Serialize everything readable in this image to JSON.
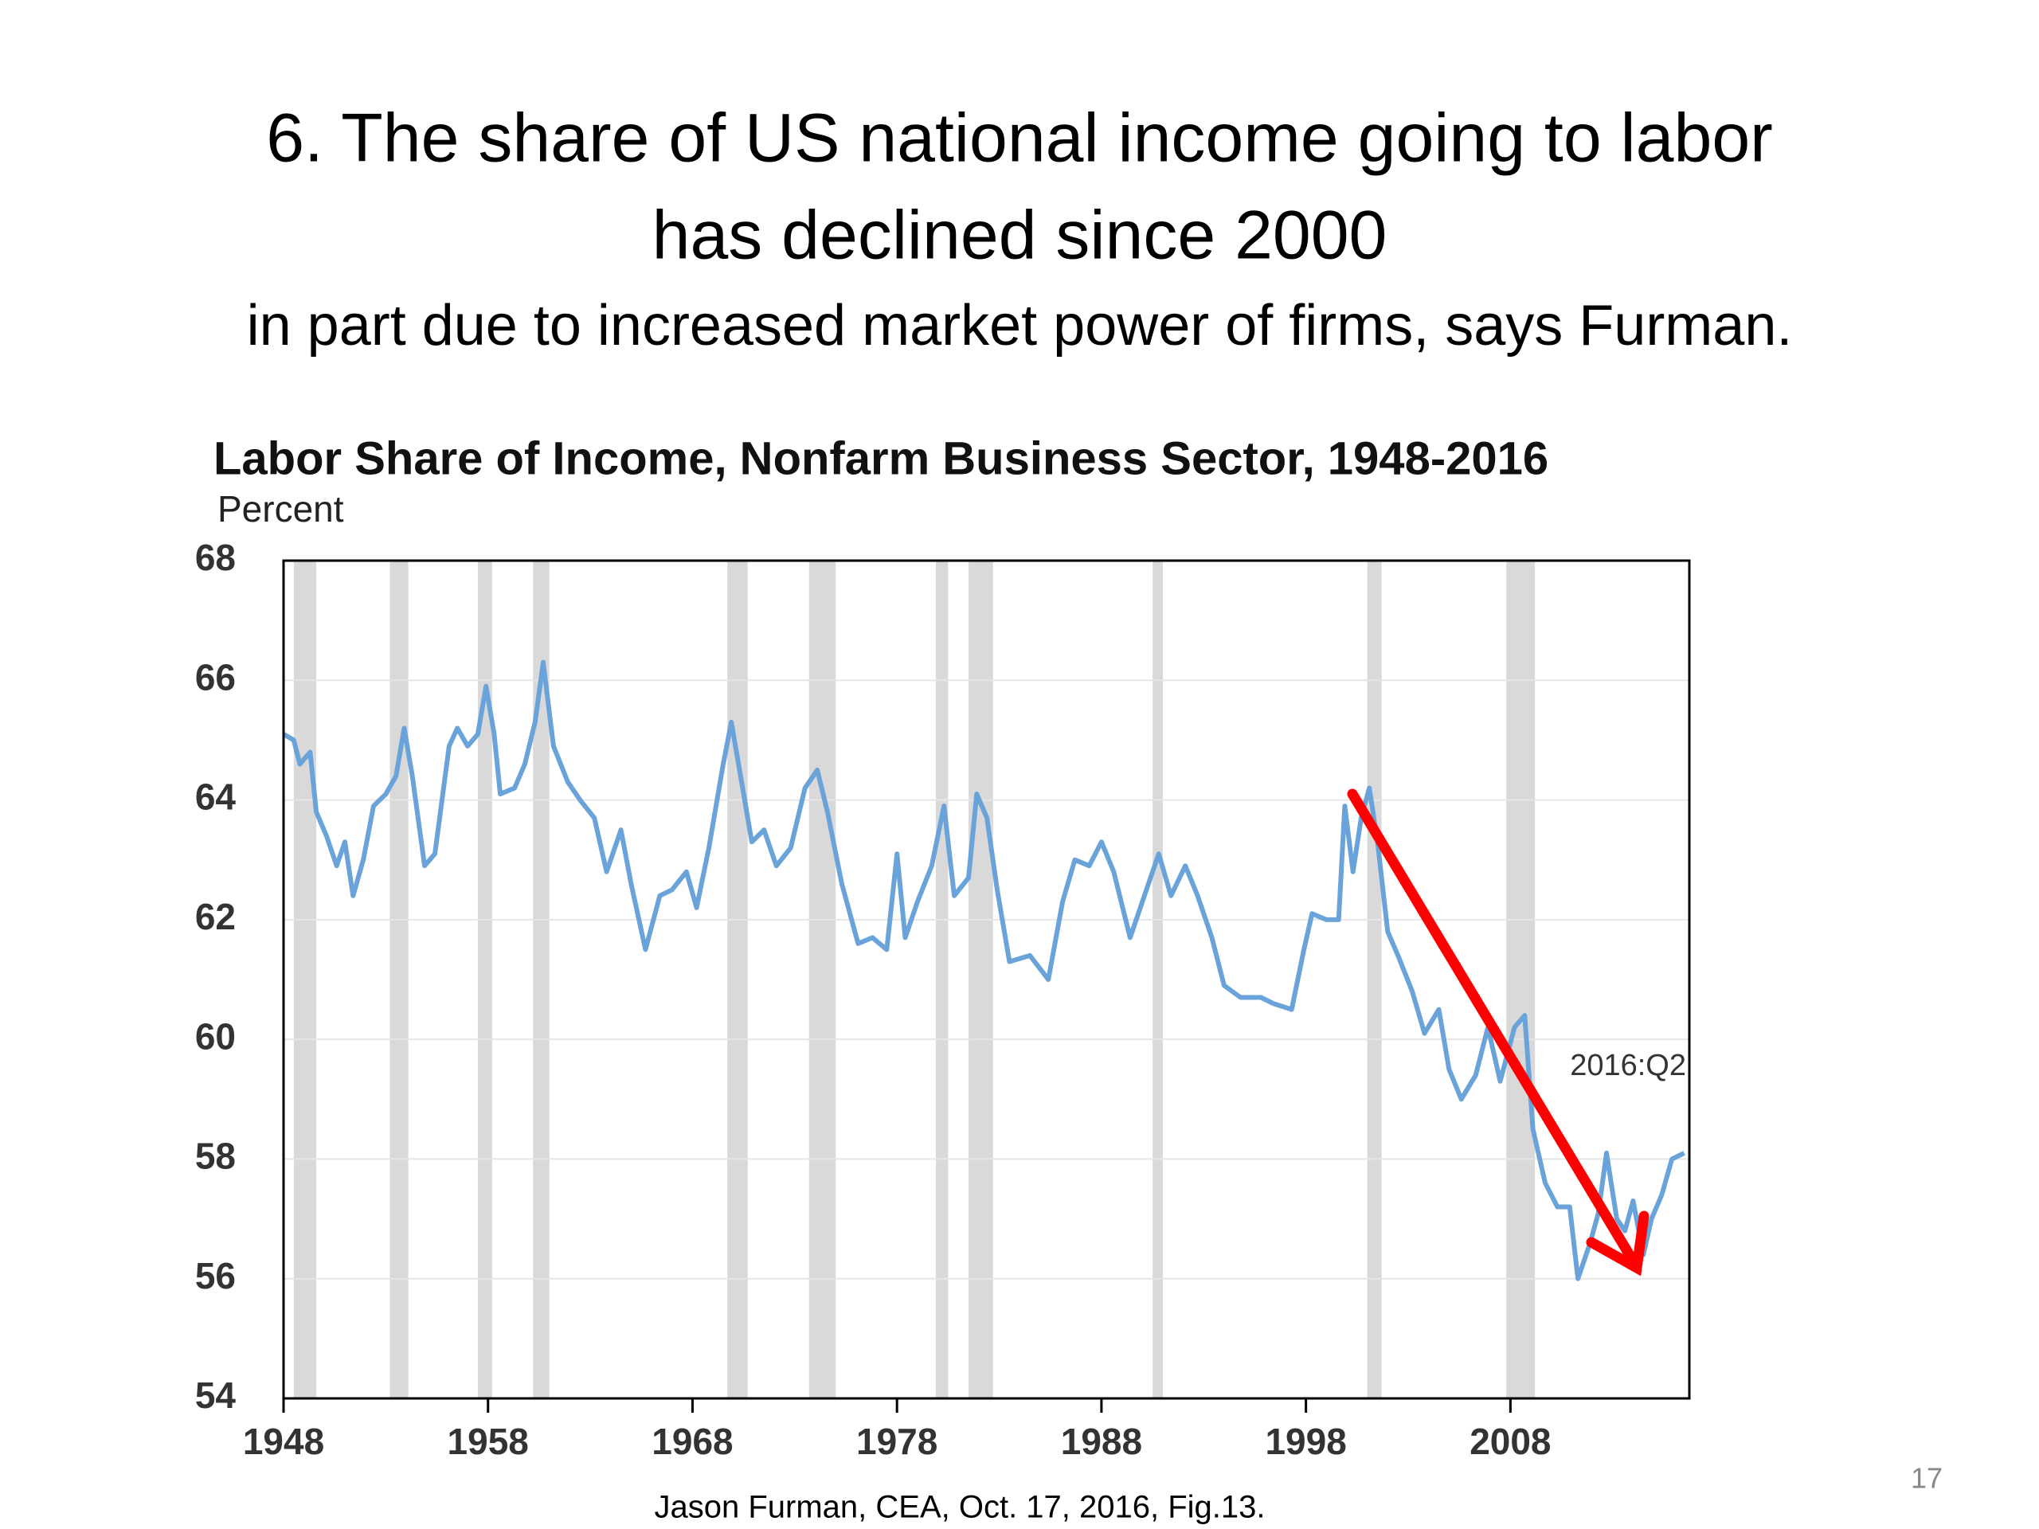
{
  "slide": {
    "title_line1": "6. The share of US national income going to labor",
    "title_line2": "has declined since 2000",
    "subtitle": "in part due to increased market power of firms, says Furman.",
    "source": "Jason Furman, CEA, Oct. 17, 2016, Fig.13.",
    "page_number": "17"
  },
  "chart_data": {
    "type": "line",
    "title": "Labor Share of Income, Nonfarm Business Sector, 1948-2016",
    "y_label": "Percent",
    "annotation": "2016:Q2",
    "color": "#6aa3d9",
    "recession_color": "#d9d9d9",
    "grid": true,
    "xlim": [
      1948,
      2016.75
    ],
    "xticks": [
      1948,
      1958,
      1968,
      1978,
      1988,
      1998,
      2008
    ],
    "ylim": [
      54,
      68
    ],
    "yticks": [
      54,
      56,
      58,
      60,
      62,
      64,
      66,
      68
    ],
    "recessions": [
      [
        1948.5,
        1949.6
      ],
      [
        1953.2,
        1954.1
      ],
      [
        1957.5,
        1958.2
      ],
      [
        1960.2,
        1961.0
      ],
      [
        1969.7,
        1970.7
      ],
      [
        1973.7,
        1975.0
      ],
      [
        1979.9,
        1980.5
      ],
      [
        1981.5,
        1982.7
      ],
      [
        1990.5,
        1991.0
      ],
      [
        2001.0,
        2001.7
      ],
      [
        2007.8,
        2009.2
      ]
    ],
    "x": [
      1948.0,
      1948.5,
      1948.8,
      1949.3,
      1949.6,
      1950.1,
      1950.6,
      1951.0,
      1951.4,
      1951.9,
      1952.4,
      1953.0,
      1953.5,
      1953.9,
      1954.3,
      1954.9,
      1955.4,
      1956.1,
      1956.5,
      1957.0,
      1957.5,
      1957.9,
      1958.3,
      1958.6,
      1959.3,
      1959.8,
      1960.3,
      1960.7,
      1961.2,
      1961.9,
      1962.5,
      1963.2,
      1963.8,
      1964.5,
      1965.0,
      1965.7,
      1966.4,
      1967.0,
      1967.7,
      1968.2,
      1968.8,
      1969.5,
      1969.9,
      1970.4,
      1970.9,
      1971.5,
      1972.1,
      1972.8,
      1973.5,
      1974.1,
      1974.6,
      1975.3,
      1976.1,
      1976.8,
      1977.5,
      1978.0,
      1978.4,
      1979.0,
      1979.7,
      1980.3,
      1980.8,
      1981.5,
      1981.9,
      1982.4,
      1982.9,
      1983.5,
      1984.5,
      1985.4,
      1986.1,
      1986.7,
      1987.4,
      1988.0,
      1988.6,
      1989.4,
      1990.1,
      1990.8,
      1991.4,
      1992.1,
      1992.7,
      1993.4,
      1994.0,
      1994.8,
      1995.8,
      1996.4,
      1997.3,
      1997.9,
      1998.3,
      1999.0,
      1999.6,
      1999.9,
      2000.3,
      2000.7,
      2001.1,
      2001.5,
      2002.0,
      2002.5,
      2003.2,
      2003.8,
      2004.5,
      2005.0,
      2005.6,
      2006.3,
      2006.9,
      2007.5,
      2008.2,
      2008.7,
      2009.1,
      2009.7,
      2010.3,
      2010.9,
      2011.3,
      2011.9,
      2012.3,
      2012.7,
      2013.2,
      2013.6,
      2014.0,
      2014.5,
      2014.9,
      2015.4,
      2015.9,
      2016.5
    ],
    "values": [
      65.1,
      65.0,
      64.6,
      64.8,
      63.8,
      63.4,
      62.9,
      63.3,
      62.4,
      63.0,
      63.9,
      64.1,
      64.4,
      65.2,
      64.4,
      62.9,
      63.1,
      64.9,
      65.2,
      64.9,
      65.1,
      65.9,
      65.1,
      64.1,
      64.2,
      64.6,
      65.3,
      66.3,
      64.9,
      64.3,
      64.0,
      63.7,
      62.8,
      63.5,
      62.6,
      61.5,
      62.4,
      62.5,
      62.8,
      62.2,
      63.2,
      64.6,
      65.3,
      64.3,
      63.3,
      63.5,
      62.9,
      63.2,
      64.2,
      64.5,
      63.8,
      62.6,
      61.6,
      61.7,
      61.5,
      63.1,
      61.7,
      62.3,
      62.9,
      63.9,
      62.4,
      62.7,
      64.1,
      63.7,
      62.5,
      61.3,
      61.4,
      61.0,
      62.3,
      63.0,
      62.9,
      63.3,
      62.8,
      61.7,
      62.4,
      63.1,
      62.4,
      62.9,
      62.4,
      61.7,
      60.9,
      60.7,
      60.7,
      60.6,
      60.5,
      61.5,
      62.1,
      62.0,
      62.0,
      63.9,
      62.8,
      63.7,
      64.2,
      63.3,
      61.8,
      61.4,
      60.8,
      60.1,
      60.5,
      59.5,
      59.0,
      59.4,
      60.2,
      59.3,
      60.2,
      60.4,
      58.5,
      57.6,
      57.2,
      57.2,
      56.0,
      56.6,
      57.1,
      58.1,
      57.0,
      56.8,
      57.3,
      56.4,
      57.0,
      57.4,
      58.0,
      58.1
    ]
  }
}
